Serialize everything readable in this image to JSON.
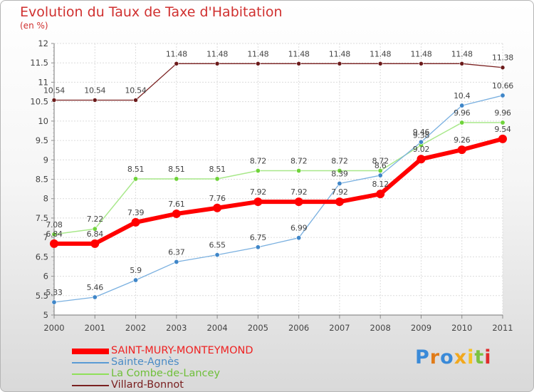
{
  "title": "Evolution du Taux de Taxe d'Habitation",
  "unit": "(en %)",
  "brand": "Proxiti",
  "chart_data": {
    "type": "line",
    "title": "Evolution du Taux de Taxe d'Habitation",
    "ylabel": "(en %)",
    "xlabel": "",
    "x": [
      "2000",
      "2001",
      "2002",
      "2003",
      "2004",
      "2005",
      "2006",
      "2007",
      "2008",
      "2009",
      "2010",
      "2011"
    ],
    "ylim": [
      5,
      12
    ],
    "yticks": [
      "5",
      "5.5",
      "6",
      "6.5",
      "7",
      "7.5",
      "8",
      "8.5",
      "9",
      "9.5",
      "10",
      "10.5",
      "11",
      "11.5",
      "12"
    ],
    "grid": true,
    "legend_position": "bottom-left",
    "series": [
      {
        "name": "Villard-Bonnot",
        "color": "#7a2020",
        "values": [
          10.54,
          10.54,
          10.54,
          11.48,
          11.48,
          11.48,
          11.48,
          11.48,
          11.48,
          11.48,
          11.48,
          11.38
        ],
        "labels": [
          "10.54",
          "10.54",
          "10.54",
          "11.48",
          "11.48",
          "11.48",
          "11.48",
          "11.48",
          "11.48",
          "11.48",
          "11.48",
          "11.38"
        ]
      },
      {
        "name": "La Combe-de-Lancey",
        "color": "#8fe05a",
        "values": [
          7.08,
          7.22,
          8.51,
          8.51,
          8.51,
          8.72,
          8.72,
          8.72,
          8.72,
          9.38,
          9.96,
          9.96
        ],
        "labels": [
          "7.08",
          "7.22",
          "8.51",
          "8.51",
          "8.51",
          "8.72",
          "8.72",
          "8.72",
          "8.72",
          "9.38",
          "9.96",
          "9.96"
        ]
      },
      {
        "name": "Sainte-Agnès",
        "color": "#5a9bd5",
        "values": [
          5.33,
          5.46,
          5.9,
          6.37,
          6.55,
          6.75,
          6.99,
          8.39,
          8.6,
          9.46,
          10.4,
          10.66
        ],
        "labels": [
          "5.33",
          "5.46",
          "5.9",
          "6.37",
          "6.55",
          "6.75",
          "6.99",
          "8.39",
          "8.6",
          "9.46",
          "10.4",
          "10.66"
        ]
      },
      {
        "name": "SAINT-MURY-MONTEYMOND",
        "color": "#ff0000",
        "values": [
          6.84,
          6.84,
          7.39,
          7.61,
          7.76,
          7.92,
          7.92,
          7.92,
          8.12,
          9.02,
          9.26,
          9.54
        ],
        "labels": [
          "6.84",
          "6.84",
          "7.39",
          "7.61",
          "7.76",
          "7.92",
          "7.92",
          "7.92",
          "8.12",
          "9.02",
          "9.26",
          "9.54"
        ]
      }
    ]
  },
  "legend": {
    "items": [
      {
        "label": "SAINT-MURY-MONTEYMOND",
        "color": "#ff0000"
      },
      {
        "label": "Sainte-Agnès",
        "color": "#5a9bd5"
      },
      {
        "label": "La Combe-de-Lancey",
        "color": "#8fe05a"
      },
      {
        "label": "Villard-Bonnot",
        "color": "#7a2020"
      }
    ]
  }
}
